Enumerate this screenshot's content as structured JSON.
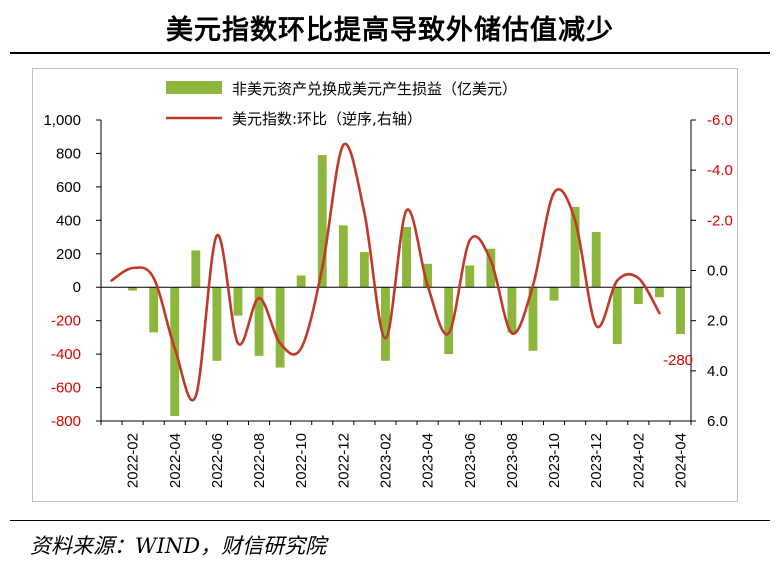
{
  "title": "美元指数环比提高导致外储估值减少",
  "source": "资料来源：WIND，财信研究院",
  "chart_data": {
    "type": "bar+line",
    "legend": {
      "bar_label": "非美元资产兑换成美元产生损益（亿美元）",
      "line_label": "美元指数:环比（逆序,右轴）",
      "placement": "top"
    },
    "x_tick_labels": [
      "2022-02",
      "2022-04",
      "2022-06",
      "2022-08",
      "2022-10",
      "2022-12",
      "2023-02",
      "2023-04",
      "2023-06",
      "2023-08",
      "2023-10",
      "2023-12",
      "2024-02",
      "2024-04"
    ],
    "months": [
      "2022-01",
      "2022-02",
      "2022-03",
      "2022-04",
      "2022-05",
      "2022-06",
      "2022-07",
      "2022-08",
      "2022-09",
      "2022-10",
      "2022-11",
      "2022-12",
      "2023-01",
      "2023-02",
      "2023-03",
      "2023-04",
      "2023-05",
      "2023-06",
      "2023-07",
      "2023-08",
      "2023-09",
      "2023-10",
      "2023-11",
      "2023-12",
      "2024-01",
      "2024-02",
      "2024-03",
      "2024-04"
    ],
    "bar_values": [
      -20,
      -270,
      -770,
      220,
      -440,
      -170,
      -410,
      -480,
      70,
      790,
      370,
      210,
      -440,
      360,
      140,
      -400,
      130,
      230,
      -270,
      -380,
      -80,
      480,
      330,
      -340,
      -100,
      -60,
      -280
    ],
    "bar_month_offset": 1,
    "line_values": [
      0.4,
      -0.1,
      0.3,
      3.1,
      5.0,
      -1.4,
      2.9,
      1.1,
      2.9,
      3.1,
      -0.1,
      -5.0,
      -2.3,
      2.7,
      -2.4,
      0.6,
      2.5,
      -1.2,
      -0.4,
      2.5,
      0.6,
      -3.1,
      -2.0,
      2.2,
      0.4,
      0.3,
      1.7
    ],
    "left_axis": {
      "ticks": [
        "1,000",
        "800",
        "600",
        "400",
        "200",
        "0",
        "-200",
        "-400",
        "-600",
        "-800"
      ],
      "min": -800,
      "max": 1000,
      "step": 200
    },
    "right_axis": {
      "ticks": [
        "-6.0",
        "-4.0",
        "-2.0",
        "0.0",
        "2.0",
        "4.0",
        "6.0"
      ],
      "min": -6,
      "max": 6,
      "reversed": true
    },
    "annotation": "-280",
    "colors": {
      "bar": "#8db63c",
      "line": "#c0392b",
      "right_axis_text": "#e00000",
      "left_negative_text": "#e00000"
    }
  }
}
